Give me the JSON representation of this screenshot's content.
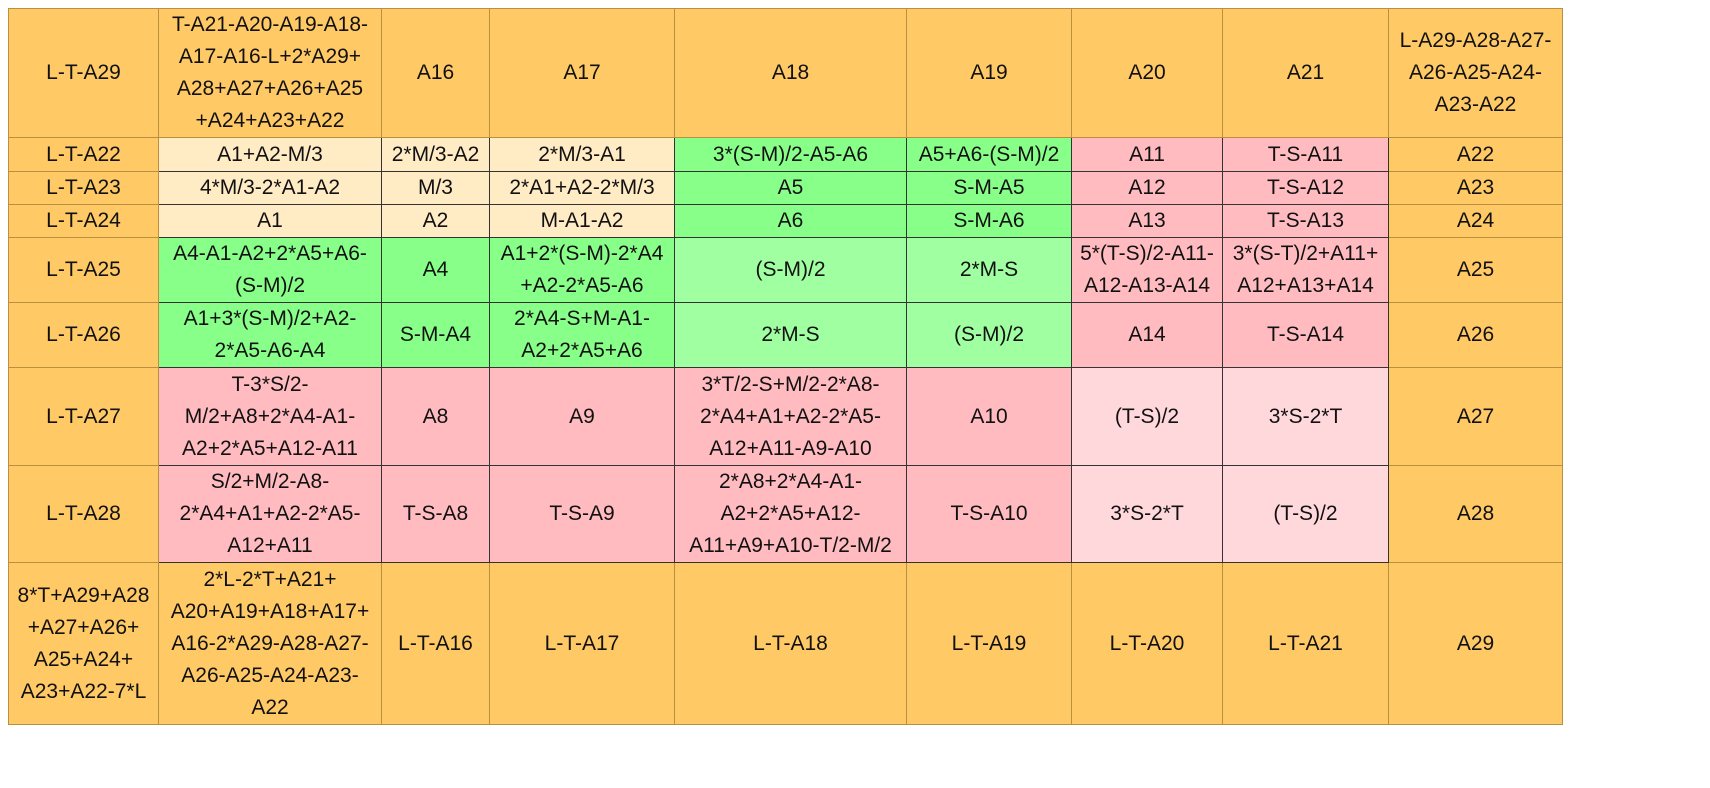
{
  "table": {
    "rows": [
      [
        "L-T-A29",
        "T-A21-A20-A19-A18-\nA17-A16-L+2*A29+\nA28+A27+A26+A25\n+A24+A23+A22",
        "A16",
        "A17",
        "A18",
        "A19",
        "A20",
        "A21",
        "L-A29-A28-A27-\nA26-A25-A24-\nA23-A22"
      ],
      [
        "L-T-A22",
        "A1+A2-M/3",
        "2*M/3-A2",
        "2*M/3-A1",
        "3*(S-M)/2-A5-A6",
        "A5+A6-(S-M)/2",
        "A11",
        "T-S-A11",
        "A22"
      ],
      [
        "L-T-A23",
        "4*M/3-2*A1-A2",
        "M/3",
        "2*A1+A2-2*M/3",
        "A5",
        "S-M-A5",
        "A12",
        "T-S-A12",
        "A23"
      ],
      [
        "L-T-A24",
        "A1",
        "A2",
        "M-A1-A2",
        "A6",
        "S-M-A6",
        "A13",
        "T-S-A13",
        "A24"
      ],
      [
        "L-T-A25",
        "A4-A1-A2+2*A5+A6-\n(S-M)/2",
        "A4",
        "A1+2*(S-M)-2*A4\n+A2-2*A5-A6",
        "(S-M)/2",
        "2*M-S",
        "5*(T-S)/2-A11-\nA12-A13-A14",
        "3*(S-T)/2+A11+\nA12+A13+A14",
        "A25"
      ],
      [
        "L-T-A26",
        "A1+3*(S-M)/2+A2-\n2*A5-A6-A4",
        "S-M-A4",
        "2*A4-S+M-A1-\nA2+2*A5+A6",
        "2*M-S",
        "(S-M)/2",
        "A14",
        "T-S-A14",
        "A26"
      ],
      [
        "L-T-A27",
        "T-3*S/2-\nM/2+A8+2*A4-A1-\nA2+2*A5+A12-A11",
        "A8",
        "A9",
        "3*T/2-S+M/2-2*A8-\n2*A4+A1+A2-2*A5-\nA12+A11-A9-A10",
        "A10",
        "(T-S)/2",
        "3*S-2*T",
        "A27"
      ],
      [
        "L-T-A28",
        "S/2+M/2-A8-\n2*A4+A1+A2-2*A5-\nA12+A11",
        "T-S-A8",
        "T-S-A9",
        "2*A8+2*A4-A1-\nA2+2*A5+A12-\nA11+A9+A10-T/2-M/2",
        "T-S-A10",
        "3*S-2*T",
        "(T-S)/2",
        "A28"
      ],
      [
        "8*T+A29+A28\n+A27+A26+\nA25+A24+\nA23+A22-7*L",
        "2*L-2*T+A21+\nA20+A19+A18+A17+\nA16-2*A29-A28-A27-\nA26-A25-A24-A23-\nA22",
        "L-T-A16",
        "L-T-A17",
        "L-T-A18",
        "L-T-A19",
        "L-T-A20",
        "L-T-A21",
        "A29"
      ]
    ]
  }
}
